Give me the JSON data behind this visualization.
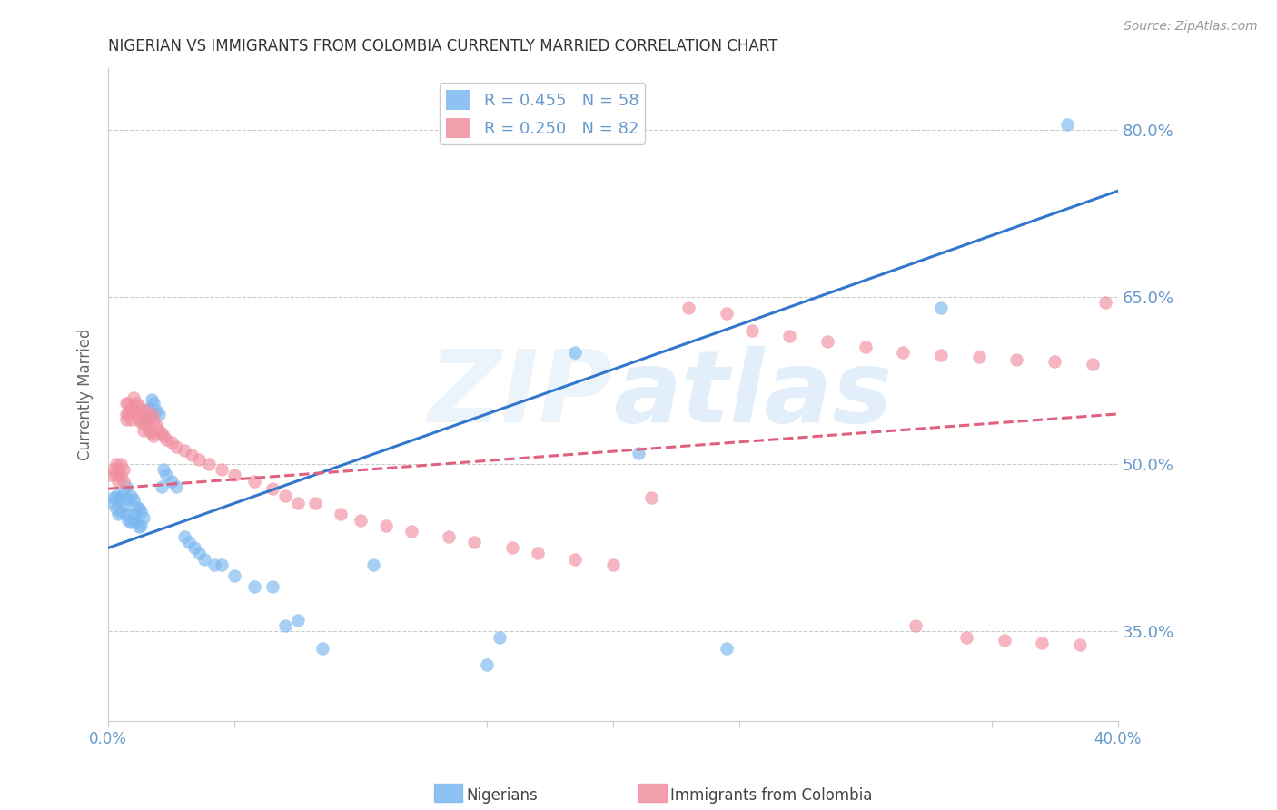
{
  "title": "NIGERIAN VS IMMIGRANTS FROM COLOMBIA CURRENTLY MARRIED CORRELATION CHART",
  "source": "Source: ZipAtlas.com",
  "ylabel": "Currently Married",
  "watermark": "ZIPatlas",
  "legend_entries": [
    {
      "label": "R = 0.455   N = 58",
      "color": "#7ab8f0"
    },
    {
      "label": "R = 0.250   N = 82",
      "color": "#f090a0"
    }
  ],
  "legend_labels": [
    "Nigerians",
    "Immigrants from Colombia"
  ],
  "xmin": 0.0,
  "xmax": 0.4,
  "ymin": 0.27,
  "ymax": 0.855,
  "yticks": [
    0.35,
    0.5,
    0.65,
    0.8
  ],
  "xticks": [
    0.0,
    0.05,
    0.1,
    0.15,
    0.2,
    0.25,
    0.3,
    0.35,
    0.4
  ],
  "xtick_labels_show": [
    "0.0%",
    "40.0%"
  ],
  "ytick_labels": [
    "35.0%",
    "50.0%",
    "65.0%",
    "80.0%"
  ],
  "blue_scatter_x": [
    0.001,
    0.002,
    0.003,
    0.003,
    0.004,
    0.004,
    0.005,
    0.005,
    0.006,
    0.006,
    0.007,
    0.007,
    0.008,
    0.008,
    0.009,
    0.009,
    0.01,
    0.01,
    0.01,
    0.011,
    0.011,
    0.012,
    0.012,
    0.013,
    0.013,
    0.014,
    0.015,
    0.016,
    0.017,
    0.018,
    0.019,
    0.02,
    0.021,
    0.022,
    0.023,
    0.025,
    0.027,
    0.03,
    0.032,
    0.034,
    0.036,
    0.038,
    0.042,
    0.045,
    0.05,
    0.058,
    0.065,
    0.07,
    0.075,
    0.085,
    0.105,
    0.15,
    0.155,
    0.185,
    0.21,
    0.245,
    0.33,
    0.38
  ],
  "blue_scatter_y": [
    0.465,
    0.47,
    0.472,
    0.46,
    0.468,
    0.455,
    0.47,
    0.458,
    0.475,
    0.462,
    0.48,
    0.455,
    0.468,
    0.45,
    0.472,
    0.448,
    0.468,
    0.455,
    0.45,
    0.462,
    0.448,
    0.46,
    0.444,
    0.458,
    0.445,
    0.452,
    0.54,
    0.55,
    0.558,
    0.555,
    0.548,
    0.545,
    0.48,
    0.495,
    0.49,
    0.485,
    0.48,
    0.435,
    0.43,
    0.425,
    0.42,
    0.415,
    0.41,
    0.41,
    0.4,
    0.39,
    0.39,
    0.355,
    0.36,
    0.335,
    0.41,
    0.32,
    0.345,
    0.6,
    0.51,
    0.335,
    0.64,
    0.805
  ],
  "pink_scatter_x": [
    0.001,
    0.002,
    0.003,
    0.003,
    0.004,
    0.004,
    0.005,
    0.005,
    0.006,
    0.006,
    0.007,
    0.007,
    0.007,
    0.008,
    0.008,
    0.009,
    0.009,
    0.01,
    0.01,
    0.011,
    0.011,
    0.012,
    0.012,
    0.013,
    0.013,
    0.014,
    0.014,
    0.015,
    0.015,
    0.016,
    0.016,
    0.017,
    0.017,
    0.018,
    0.018,
    0.019,
    0.02,
    0.021,
    0.022,
    0.023,
    0.025,
    0.027,
    0.03,
    0.033,
    0.036,
    0.04,
    0.045,
    0.05,
    0.058,
    0.065,
    0.07,
    0.075,
    0.082,
    0.092,
    0.1,
    0.11,
    0.12,
    0.135,
    0.145,
    0.16,
    0.17,
    0.185,
    0.2,
    0.215,
    0.23,
    0.245,
    0.255,
    0.27,
    0.285,
    0.3,
    0.315,
    0.33,
    0.345,
    0.36,
    0.375,
    0.39,
    0.32,
    0.34,
    0.355,
    0.37,
    0.385,
    0.395
  ],
  "pink_scatter_y": [
    0.49,
    0.495,
    0.5,
    0.49,
    0.495,
    0.485,
    0.5,
    0.49,
    0.495,
    0.485,
    0.555,
    0.545,
    0.54,
    0.555,
    0.545,
    0.55,
    0.54,
    0.56,
    0.548,
    0.555,
    0.545,
    0.552,
    0.54,
    0.548,
    0.538,
    0.54,
    0.53,
    0.548,
    0.535,
    0.542,
    0.53,
    0.545,
    0.528,
    0.54,
    0.525,
    0.535,
    0.53,
    0.528,
    0.525,
    0.522,
    0.52,
    0.516,
    0.512,
    0.508,
    0.504,
    0.5,
    0.495,
    0.49,
    0.485,
    0.478,
    0.472,
    0.465,
    0.465,
    0.455,
    0.45,
    0.445,
    0.44,
    0.435,
    0.43,
    0.425,
    0.42,
    0.415,
    0.41,
    0.47,
    0.64,
    0.635,
    0.62,
    0.615,
    0.61,
    0.605,
    0.6,
    0.598,
    0.596,
    0.594,
    0.592,
    0.59,
    0.355,
    0.345,
    0.342,
    0.34,
    0.338,
    0.645
  ],
  "blue_line": {
    "x0": 0.0,
    "y0": 0.425,
    "x1": 0.4,
    "y1": 0.745
  },
  "pink_line": {
    "x0": 0.0,
    "y0": 0.478,
    "x1": 0.4,
    "y1": 0.545
  },
  "blue_color": "#7ab8f0",
  "pink_color": "#f090a0",
  "blue_line_color": "#3377cc",
  "pink_line_color": "#e06080",
  "background_color": "#ffffff",
  "grid_color": "#cccccc",
  "title_color": "#333333",
  "axis_color": "#6699cc",
  "right_axis_color": "#6699cc"
}
